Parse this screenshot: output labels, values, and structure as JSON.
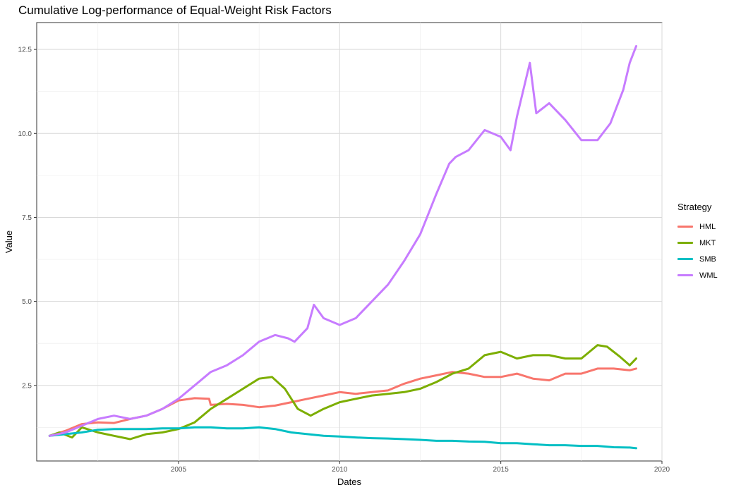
{
  "chart_data": {
    "type": "line",
    "title": "Cumulative Log-performance of Equal-Weight Risk Factors",
    "xlabel": "Dates",
    "ylabel": "Value",
    "xlim": [
      2000.6,
      2020.0
    ],
    "ylim": [
      0.25,
      13.3
    ],
    "x_ticks": [
      2005,
      2010,
      2015,
      2020
    ],
    "y_ticks": [
      2.5,
      5.0,
      7.5,
      10.0,
      12.5
    ],
    "y_tick_labels": [
      "2.5",
      "5.0",
      "7.5",
      "10.0",
      "12.5"
    ],
    "grid": true,
    "legend": {
      "title": "Strategy",
      "position": "right"
    },
    "series": [
      {
        "name": "HML",
        "color": "#F8766D",
        "x": [
          2001.0,
          2001.5,
          2002.0,
          2002.5,
          2003.0,
          2003.5,
          2004.0,
          2004.5,
          2005.0,
          2005.5,
          2005.95,
          2006.0,
          2006.5,
          2007.0,
          2007.5,
          2008.0,
          2008.5,
          2009.0,
          2009.5,
          2010.0,
          2010.5,
          2011.0,
          2011.5,
          2012.0,
          2012.5,
          2013.0,
          2013.5,
          2014.0,
          2014.5,
          2015.0,
          2015.5,
          2016.0,
          2016.5,
          2017.0,
          2017.5,
          2018.0,
          2018.5,
          2019.0,
          2019.2
        ],
        "values": [
          1.0,
          1.15,
          1.35,
          1.4,
          1.38,
          1.5,
          1.6,
          1.8,
          2.05,
          2.12,
          2.1,
          1.92,
          1.95,
          1.92,
          1.85,
          1.9,
          2.0,
          2.1,
          2.2,
          2.3,
          2.25,
          2.3,
          2.35,
          2.55,
          2.7,
          2.8,
          2.9,
          2.85,
          2.75,
          2.75,
          2.85,
          2.7,
          2.65,
          2.85,
          2.85,
          3.0,
          3.0,
          2.95,
          3.0
        ]
      },
      {
        "name": "MKT",
        "color": "#7CAE00",
        "x": [
          2001.0,
          2001.3,
          2001.7,
          2002.0,
          2002.5,
          2003.0,
          2003.5,
          2004.0,
          2004.5,
          2005.0,
          2005.5,
          2006.0,
          2006.5,
          2007.0,
          2007.5,
          2007.9,
          2008.3,
          2008.7,
          2009.1,
          2009.5,
          2010.0,
          2010.5,
          2011.0,
          2011.5,
          2012.0,
          2012.5,
          2013.0,
          2013.5,
          2014.0,
          2014.5,
          2015.0,
          2015.5,
          2016.0,
          2016.5,
          2017.0,
          2017.5,
          2018.0,
          2018.3,
          2018.7,
          2019.0,
          2019.2
        ],
        "values": [
          1.0,
          1.1,
          0.95,
          1.25,
          1.1,
          1.0,
          0.9,
          1.05,
          1.1,
          1.2,
          1.4,
          1.8,
          2.1,
          2.4,
          2.7,
          2.75,
          2.4,
          1.8,
          1.6,
          1.8,
          2.0,
          2.1,
          2.2,
          2.25,
          2.3,
          2.4,
          2.6,
          2.85,
          3.0,
          3.4,
          3.5,
          3.3,
          3.4,
          3.4,
          3.3,
          3.3,
          3.7,
          3.65,
          3.35,
          3.1,
          3.3
        ]
      },
      {
        "name": "SMB",
        "color": "#00BFC4",
        "x": [
          2001.0,
          2001.5,
          2002.0,
          2002.5,
          2003.0,
          2003.5,
          2004.0,
          2004.5,
          2005.0,
          2005.5,
          2006.0,
          2006.5,
          2007.0,
          2007.5,
          2008.0,
          2008.5,
          2009.0,
          2009.5,
          2010.0,
          2010.5,
          2011.0,
          2011.5,
          2012.0,
          2012.5,
          2013.0,
          2013.5,
          2014.0,
          2014.5,
          2015.0,
          2015.5,
          2016.0,
          2016.5,
          2017.0,
          2017.5,
          2018.0,
          2018.5,
          2019.0,
          2019.2
        ],
        "values": [
          1.0,
          1.05,
          1.1,
          1.18,
          1.2,
          1.2,
          1.2,
          1.22,
          1.22,
          1.25,
          1.25,
          1.22,
          1.22,
          1.25,
          1.2,
          1.1,
          1.05,
          1.0,
          0.98,
          0.95,
          0.93,
          0.92,
          0.9,
          0.88,
          0.85,
          0.85,
          0.83,
          0.82,
          0.78,
          0.78,
          0.75,
          0.72,
          0.72,
          0.7,
          0.7,
          0.66,
          0.65,
          0.63
        ]
      },
      {
        "name": "WML",
        "color": "#C77CFF",
        "x": [
          2001.0,
          2001.5,
          2002.0,
          2002.5,
          2003.0,
          2003.5,
          2004.0,
          2004.5,
          2005.0,
          2005.5,
          2006.0,
          2006.5,
          2007.0,
          2007.5,
          2008.0,
          2008.4,
          2008.6,
          2009.0,
          2009.2,
          2009.5,
          2010.0,
          2010.5,
          2011.0,
          2011.5,
          2012.0,
          2012.5,
          2013.0,
          2013.4,
          2013.6,
          2014.0,
          2014.5,
          2015.0,
          2015.3,
          2015.5,
          2015.9,
          2016.1,
          2016.5,
          2017.0,
          2017.5,
          2018.0,
          2018.4,
          2018.8,
          2019.0,
          2019.2
        ],
        "values": [
          1.0,
          1.1,
          1.3,
          1.5,
          1.6,
          1.5,
          1.6,
          1.8,
          2.1,
          2.5,
          2.9,
          3.1,
          3.4,
          3.8,
          4.0,
          3.9,
          3.8,
          4.2,
          4.9,
          4.5,
          4.3,
          4.5,
          5.0,
          5.5,
          6.2,
          7.0,
          8.2,
          9.1,
          9.3,
          9.5,
          10.1,
          9.9,
          9.5,
          10.5,
          12.1,
          10.6,
          10.9,
          10.4,
          9.8,
          9.8,
          10.3,
          11.3,
          12.1,
          12.6
        ]
      }
    ]
  }
}
